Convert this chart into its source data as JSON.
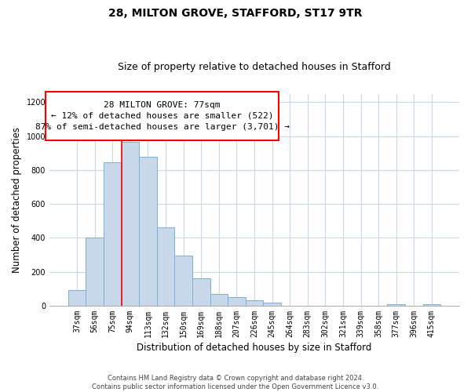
{
  "title": "28, MILTON GROVE, STAFFORD, ST17 9TR",
  "subtitle": "Size of property relative to detached houses in Stafford",
  "xlabel": "Distribution of detached houses by size in Stafford",
  "ylabel": "Number of detached properties",
  "bar_labels": [
    "37sqm",
    "56sqm",
    "75sqm",
    "94sqm",
    "113sqm",
    "132sqm",
    "150sqm",
    "169sqm",
    "188sqm",
    "207sqm",
    "226sqm",
    "245sqm",
    "264sqm",
    "283sqm",
    "302sqm",
    "321sqm",
    "339sqm",
    "358sqm",
    "377sqm",
    "396sqm",
    "415sqm"
  ],
  "bar_values": [
    90,
    400,
    845,
    965,
    880,
    460,
    295,
    160,
    70,
    52,
    33,
    20,
    0,
    0,
    0,
    0,
    0,
    0,
    10,
    0,
    10
  ],
  "bar_color": "#c8d8ea",
  "bar_edge_color": "#7aafd4",
  "red_line_bar_index": 2,
  "annotation_line1": "28 MILTON GROVE: 77sqm",
  "annotation_line2": "← 12% of detached houses are smaller (522)",
  "annotation_line3": "87% of semi-detached houses are larger (3,701) →",
  "ylim": [
    0,
    1250
  ],
  "yticks": [
    0,
    200,
    400,
    600,
    800,
    1000,
    1200
  ],
  "footnote_line1": "Contains HM Land Registry data © Crown copyright and database right 2024.",
  "footnote_line2": "Contains public sector information licensed under the Open Government Licence v3.0.",
  "bg_color": "#ffffff",
  "grid_color": "#c8d8ea",
  "title_fontsize": 10,
  "subtitle_fontsize": 9,
  "axis_label_fontsize": 8.5,
  "tick_fontsize": 7,
  "annotation_fontsize": 8,
  "footnote_fontsize": 6
}
